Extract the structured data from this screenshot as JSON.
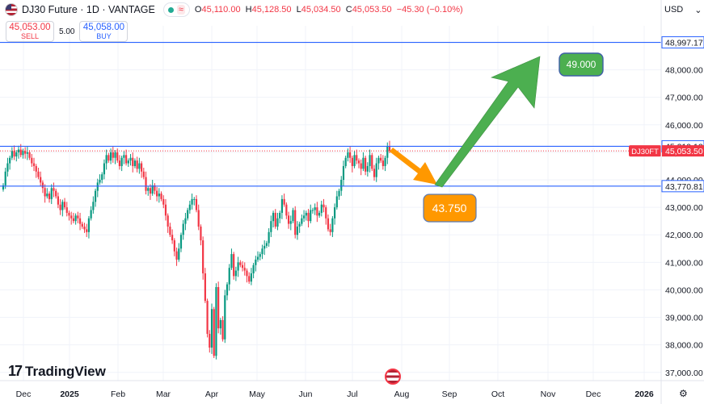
{
  "header": {
    "title": "DJ30 Future · 1D · VANTAGE",
    "ohlc": [
      {
        "k": "O",
        "v": "45,110.00"
      },
      {
        "k": "H",
        "v": "45,128.50"
      },
      {
        "k": "L",
        "v": "45,034.50"
      },
      {
        "k": "C",
        "v": "45,053.50"
      }
    ],
    "change": "−45.30 (−0.10%)",
    "sell_price": "45,053.00",
    "sell_label": "SELL",
    "spread": "5.00",
    "buy_price": "45,058.00",
    "buy_label": "BUY",
    "currency": "USD",
    "currency_caret": "⌄",
    "logo_mark": "17",
    "logo_text": "TradingView"
  },
  "colors": {
    "up": "#089981",
    "down": "#f23645",
    "hline": "#2962ff",
    "green_arrow": "#4caf50",
    "orange_arrow": "#ff9800"
  },
  "chart_data": {
    "type": "candlestick",
    "symbol_tag": "DJ30FT",
    "ylim": [
      36700,
      49600
    ],
    "x_ticks": [
      "Dec",
      "2025",
      "Feb",
      "Mar",
      "Apr",
      "May",
      "Jun",
      "Jul",
      "Aug",
      "Sep",
      "Oct",
      "Nov",
      "Dec",
      "2026"
    ],
    "y_ticks": [
      "49,000.00",
      "48,000.00",
      "47,000.00",
      "46,000.00",
      "45,000.00",
      "44,000.00",
      "43,000.00",
      "42,000.00",
      "41,000.00",
      "40,000.00",
      "39,000.00",
      "38,000.00",
      "37,000.00"
    ],
    "price_lines": [
      {
        "value": 48997.17,
        "label": "48,997.17"
      },
      {
        "value": 45219.12,
        "label": "45,219.12"
      },
      {
        "value": 43770.81,
        "label": "43,770.81"
      }
    ],
    "last_price": {
      "value": 45053.5,
      "label": "45,053.50"
    },
    "annotations": [
      {
        "text": "43.750",
        "value": 43750
      },
      {
        "text": "49.000",
        "value": 49000
      }
    ],
    "closes": [
      43800,
      44300,
      44600,
      44800,
      45050,
      44850,
      45000,
      45100,
      44900,
      45050,
      44950,
      45000,
      44800,
      44600,
      44500,
      44300,
      44100,
      43900,
      43700,
      43400,
      43500,
      43300,
      43700,
      43600,
      43400,
      43100,
      42900,
      43200,
      43000,
      42800,
      42700,
      42600,
      42500,
      42700,
      42600,
      42400,
      42300,
      42200,
      42100,
      42600,
      42900,
      43200,
      43600,
      43900,
      44000,
      44200,
      44600,
      44900,
      44700,
      45000,
      44800,
      45000,
      44700,
      44500,
      44800,
      44900,
      44600,
      44700,
      44800,
      44500,
      44700,
      44400,
      44600,
      44300,
      44100,
      43600,
      43700,
      43500,
      43800,
      43600,
      43400,
      43500,
      43300,
      43100,
      42700,
      42300,
      42000,
      41800,
      41400,
      41100,
      41500,
      42000,
      42400,
      42600,
      42900,
      43100,
      43300,
      43300,
      42900,
      42300,
      41800,
      40600,
      39600,
      38400,
      37900,
      39300,
      37600,
      40100,
      38600,
      38900,
      38200,
      39800,
      40200,
      40800,
      41300,
      40500,
      40700,
      41000,
      40900,
      40800,
      40700,
      40500,
      40300,
      40600,
      40900,
      41100,
      41200,
      41300,
      41500,
      41600,
      41700,
      42100,
      42500,
      42800,
      42300,
      42600,
      42800,
      43300,
      43100,
      42700,
      42400,
      42500,
      42900,
      42000,
      42300,
      42400,
      42600,
      42700,
      42800,
      42500,
      42900,
      42900,
      43000,
      42700,
      42800,
      43100,
      43000,
      42600,
      42200,
      42100,
      42600,
      43000,
      43400,
      43600,
      44000,
      44500,
      44800,
      45000,
      44800,
      44500,
      44900,
      44700,
      44600,
      44400,
      44800,
      44300,
      44500,
      44900,
      44400,
      44100,
      44600,
      44800,
      44700,
      44500,
      44800,
      45219,
      45053
    ]
  }
}
